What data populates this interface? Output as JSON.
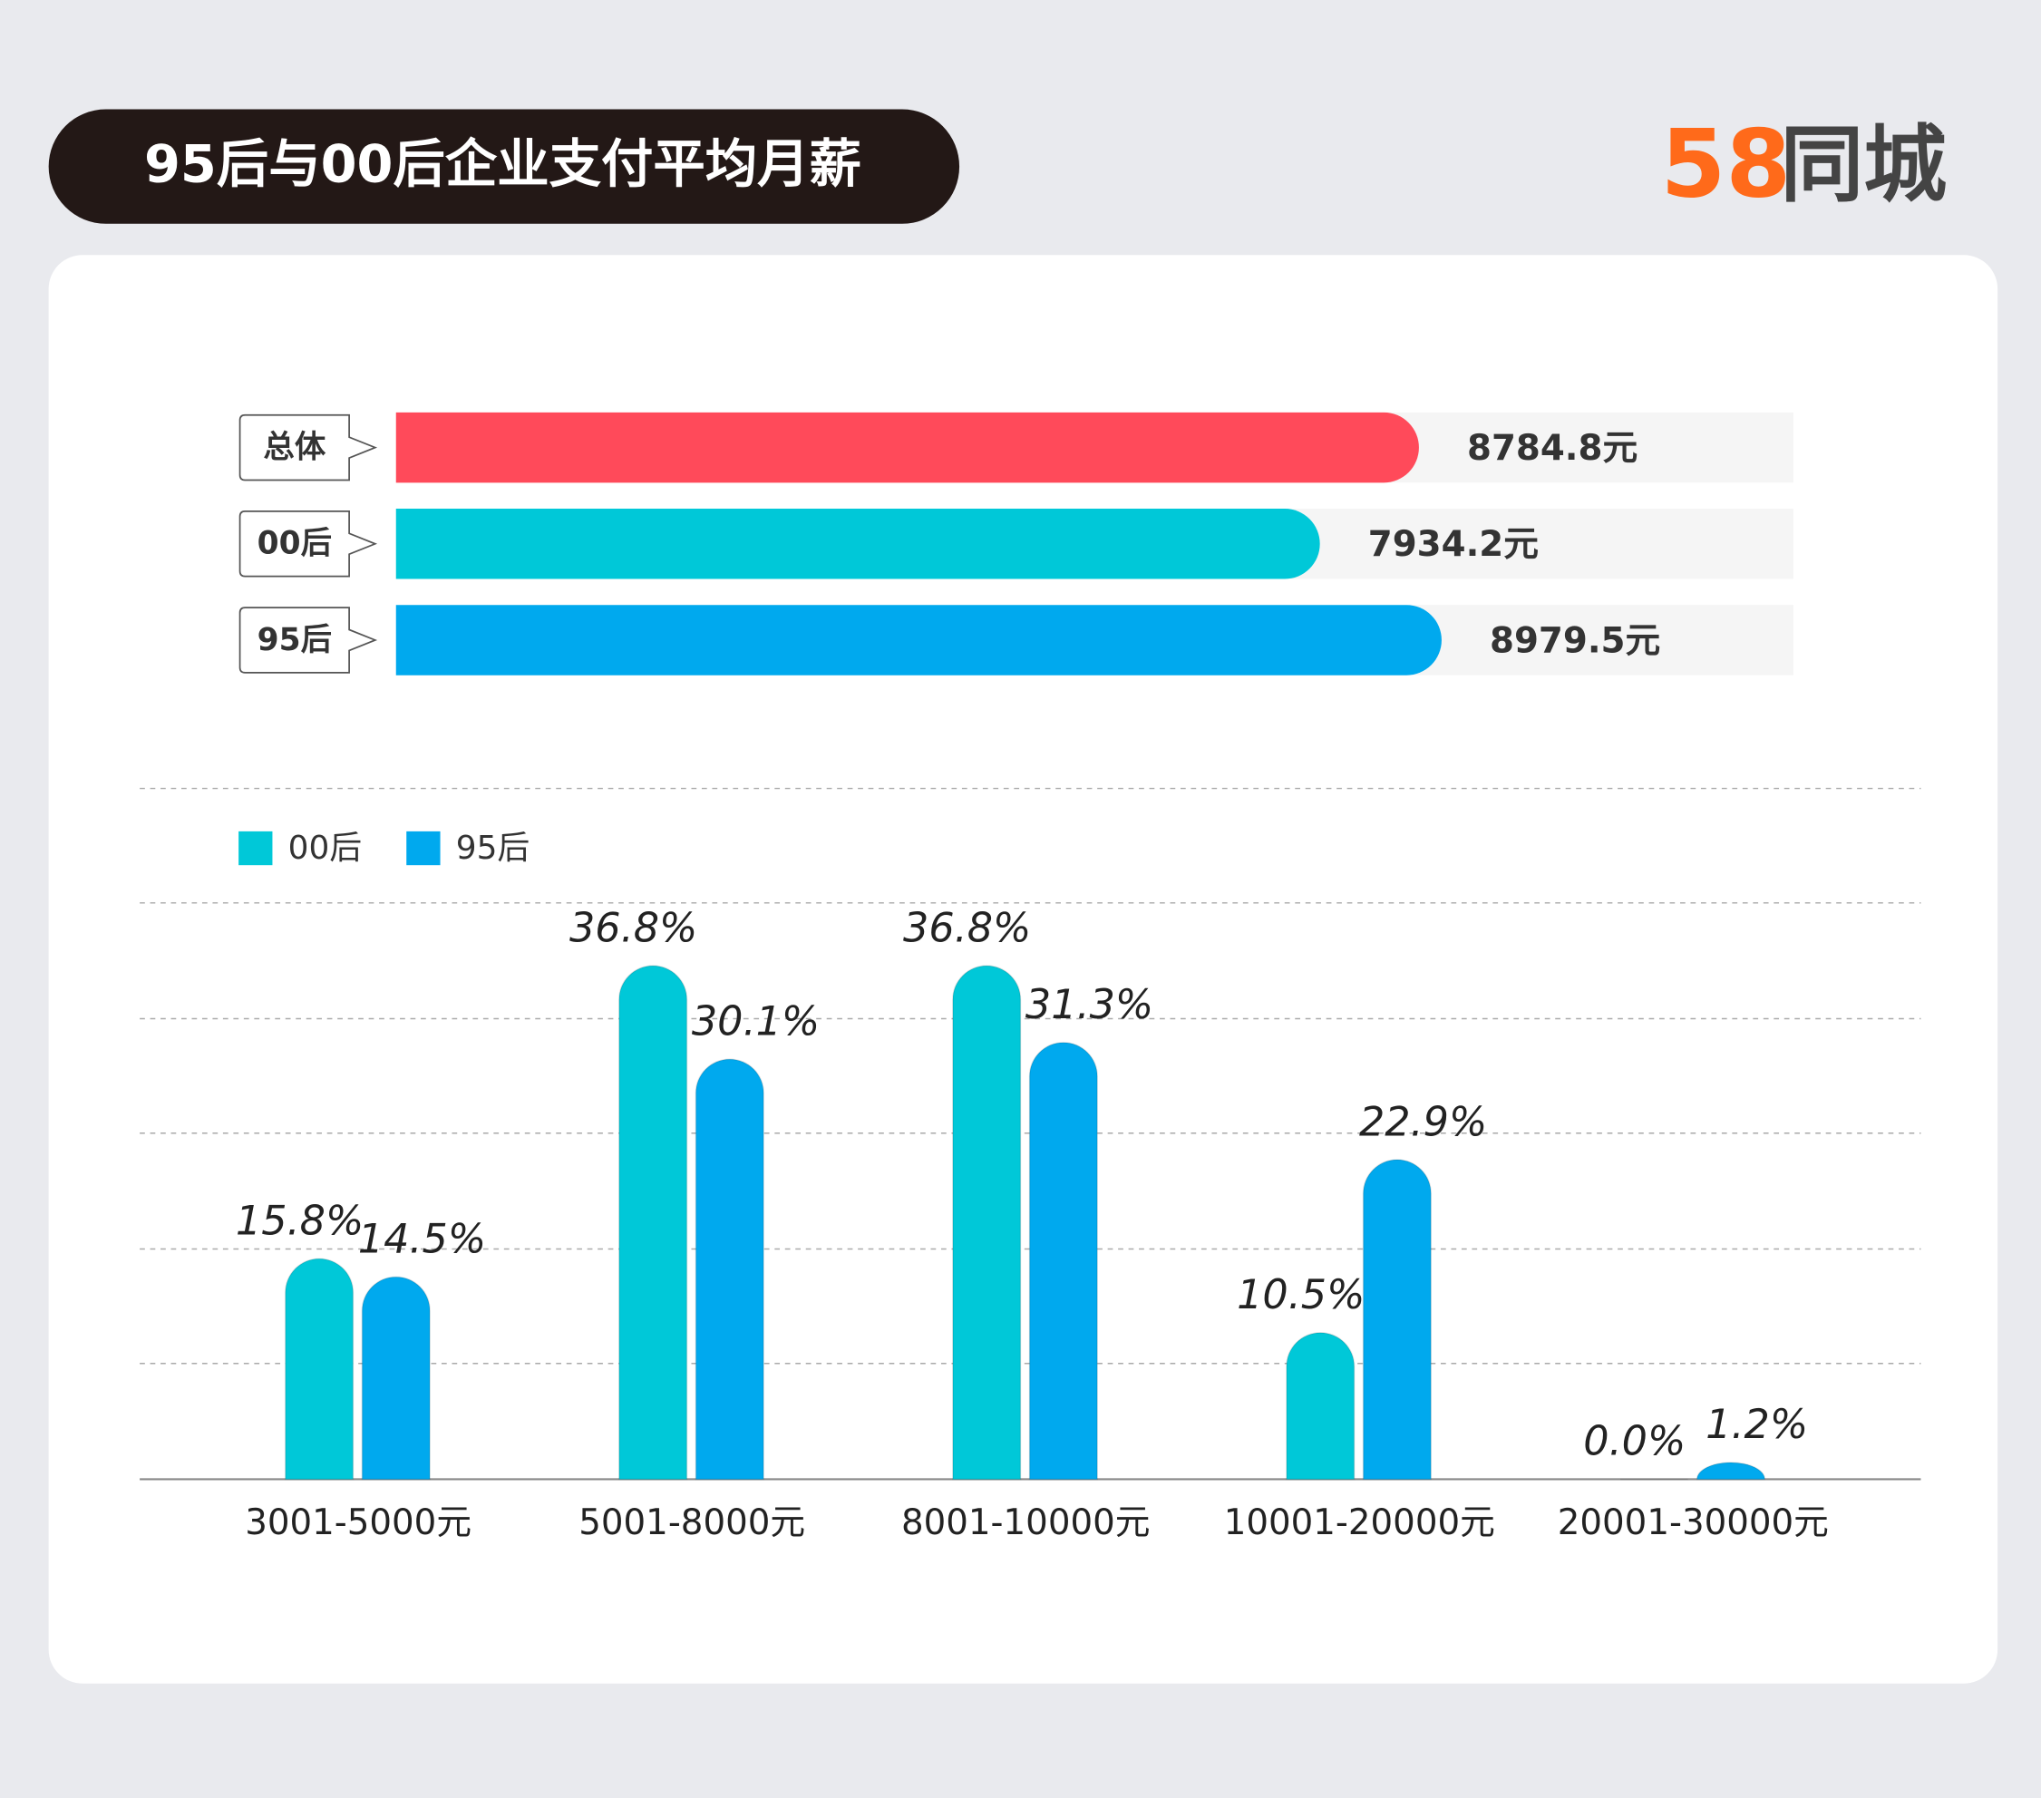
{
  "header": {
    "title": "95后与00后企业支付平均月薪",
    "logo_mark": "58",
    "logo_name": "同城"
  },
  "chart_data": [
    {
      "type": "hbar",
      "categories": [
        "总体",
        "00后",
        "95后"
      ],
      "values": [
        8784.8,
        7934.2,
        8979.5
      ],
      "value_labels": [
        "8784.8元",
        "7934.2元",
        "8979.5元"
      ],
      "colors": [
        "#ff4a5a",
        "#00c8d8",
        "#00a9ee"
      ],
      "xlim": [
        0,
        12000
      ]
    },
    {
      "type": "bar",
      "categories": [
        "3001-5000元",
        "5001-8000元",
        "8001-10000元",
        "10001-20000元",
        "20001-30000元"
      ],
      "series": [
        {
          "name": "00后",
          "color": "#00c8d8",
          "values": [
            15.8,
            36.8,
            36.8,
            10.5,
            0.0
          ],
          "value_labels": [
            "15.8%",
            "36.8%",
            "36.8%",
            "10.5%",
            "0.0%"
          ]
        },
        {
          "name": "95后",
          "color": "#00a9ee",
          "values": [
            14.5,
            30.1,
            31.3,
            22.9,
            1.2
          ],
          "value_labels": [
            "14.5%",
            "30.1%",
            "31.3%",
            "22.9%",
            "1.2%"
          ]
        }
      ],
      "ylim": [
        0,
        40
      ],
      "legend": "top-left"
    }
  ]
}
